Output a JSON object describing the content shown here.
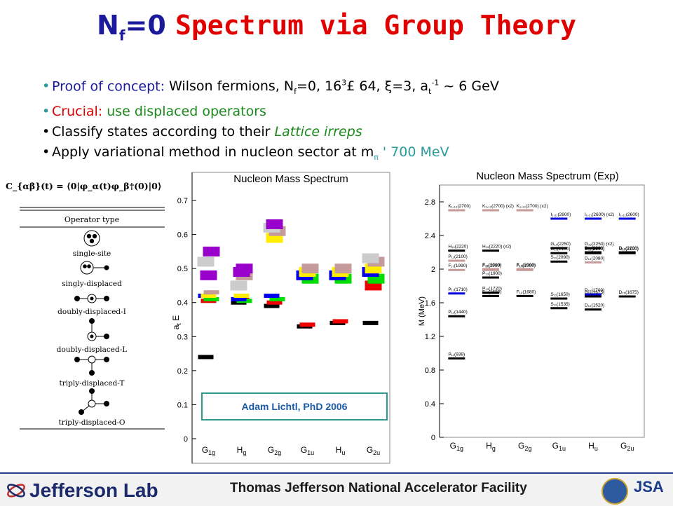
{
  "title": {
    "prefix": "N",
    "prefix_sub": "f",
    "prefix_rest": "=0",
    "main": "Spectrum via Group Theory"
  },
  "bullets": {
    "b1": {
      "label": "Proof of concept:",
      "text": "Wilson fermions, N",
      "sub_f": "f",
      "t2": "=0, 16",
      "sup3": "3",
      "t3": "£ 64, ",
      "xi": "ξ",
      "t4": "=3, a",
      "sub_t": "t",
      "sup_m1": "-1",
      "t5": " ~ 6 GeV"
    },
    "b2": {
      "label": "Crucial:",
      "text": "use displaced operators"
    },
    "b3": {
      "text": "Classify states according to their",
      "em": "Lattice irreps"
    },
    "b4": {
      "text": "Apply variational method in nucleon sector at m",
      "sub_pi": "π",
      "tail": " ' 700 MeV"
    }
  },
  "formula": "C_{αβ}(t) = ⟨0|φ_α(t)φ_β†(0)|0⟩",
  "operator_table": {
    "header": "Operator type",
    "rows": [
      "single-site",
      "singly-displaced",
      "doubly-displaced-I",
      "doubly-displaced-L",
      "triply-displaced-T",
      "triply-displaced-O"
    ]
  },
  "chart_left": {
    "title": "Nucleon Mass Spectrum",
    "ylabel": "a",
    "ylabel_sub": "t",
    "ylabel_tail": " E",
    "yticks": [
      "0",
      "0.1",
      "0.2",
      "0.3",
      "0.4",
      "0.5",
      "0.6",
      "0.7"
    ],
    "xticks": [
      "G",
      "H",
      "G",
      "G",
      "H",
      "G"
    ],
    "xticks_sub": [
      "1g",
      "g",
      "2g",
      "1u",
      "u",
      "2u"
    ],
    "credit": "Adam Lichtl, PhD 2006"
  },
  "chart_data": {
    "type": "scatter",
    "title": "Nucleon Mass Spectrum",
    "ylim": [
      0,
      0.75
    ],
    "categories": [
      "G1g",
      "Hg",
      "G2g",
      "G1u",
      "Hu",
      "G2u"
    ],
    "colors": [
      "#000000",
      "#0000ee",
      "#ee0000",
      "#00dd00",
      "#ffee00",
      "#9900cc",
      "#cccccc",
      "#c49a9a"
    ],
    "levels": [
      [
        0.24,
        0.405,
        0.41,
        0.42,
        0.42,
        0.43,
        0.52,
        0.48,
        0.55
      ],
      [
        0.4,
        0.41,
        0.405,
        0.41,
        0.42,
        0.48,
        0.45,
        0.49,
        0.5
      ],
      [
        0.39,
        0.4,
        0.41,
        0.42,
        0.59,
        0.61,
        0.62,
        0.63
      ],
      [
        0.33,
        0.335,
        0.47,
        0.48,
        0.49,
        0.5
      ],
      [
        0.34,
        0.345,
        0.47,
        0.48,
        0.49,
        0.5
      ],
      [
        0.34,
        0.45,
        0.47,
        0.49,
        0.5,
        0.52,
        0.53
      ]
    ]
  },
  "chart_right": {
    "title": "Nucleon Mass Spectrum (Exp)",
    "ylabel": "M (MeV)",
    "yticks": [
      "0",
      "0.4",
      "0.8",
      "1.2",
      "1.6",
      "2",
      "2.4",
      "2.8"
    ],
    "xticks": [
      "G",
      "H",
      "G",
      "G",
      "H",
      "G"
    ],
    "xticks_sub": [
      "1g",
      "g",
      "2g",
      "1u",
      "u",
      "2u"
    ],
    "labels": [
      "K₁,₁₃(2700)",
      "K₁,₁₃(2700) (x2)",
      "K₁,₁₃(2700) (x2)",
      "I₁,₁₁(2600)",
      "I₁,₁₁(2600) (x2)",
      "I₁,₁₁(2600)",
      "H₁₉(2220)",
      "H₁₉(2220) (x2)",
      "G₁₉(2250)",
      "G₁₉(2250) (x2)",
      "D₁₅(2200)",
      "D₁₅(2200)",
      "P₁₁(2100)",
      "F₁₅(2000)",
      "F₁₅(2000)",
      "G₁₇(2190)",
      "G₁₇(2190)",
      "G₁₇(2190)",
      "F₁₇(1990)",
      "F₁₇(1990)",
      "F₁₇(1990)",
      "S₁₁(2090)",
      "D₁₃(2080)",
      "P₁₃(1900)",
      "P₁₃(1720)",
      "S₁₁(1650)",
      "D₁₅(1700)",
      "P₁₁(1710)",
      "F₁₅(1680)",
      "F₁₅(1680)",
      "D₁₅(1675)",
      "D₁₅(1675)",
      "S₁₁(1535)",
      "D₁₃(1520)",
      "P₁₁(1440)",
      "P₁₁(939)"
    ]
  },
  "footer": {
    "lab": "Jefferson Lab",
    "facility": "Thomas Jefferson National Accelerator Facility",
    "jsa": "JSA"
  }
}
